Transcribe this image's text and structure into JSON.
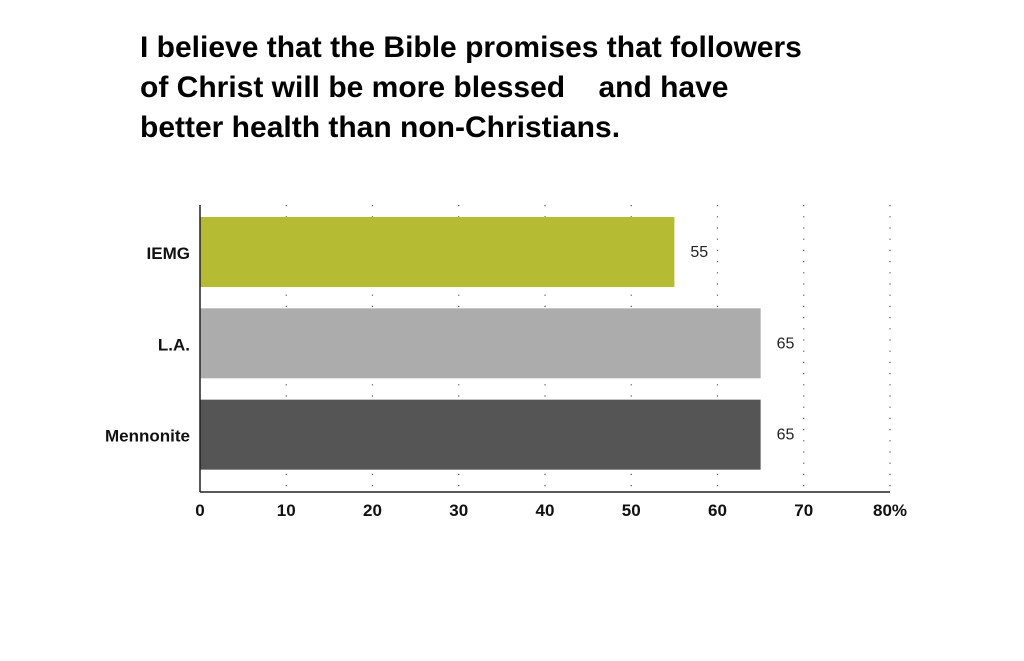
{
  "chart_data": {
    "type": "bar",
    "orientation": "horizontal",
    "title": [
      "I believe that the Bible promises that followers",
      "of Christ will be more blessed    and have",
      "better health than non-Christians."
    ],
    "categories": [
      "IEMG",
      "L.A.",
      "Mennonite"
    ],
    "values": [
      55,
      65,
      65
    ],
    "colors": [
      "#b5bb32",
      "#acacac",
      "#555555"
    ],
    "xlim": [
      0,
      80
    ],
    "xticks": [
      0,
      10,
      20,
      30,
      40,
      50,
      60,
      70,
      {
        "value": 80,
        "label": "80%"
      }
    ],
    "grid": true
  }
}
